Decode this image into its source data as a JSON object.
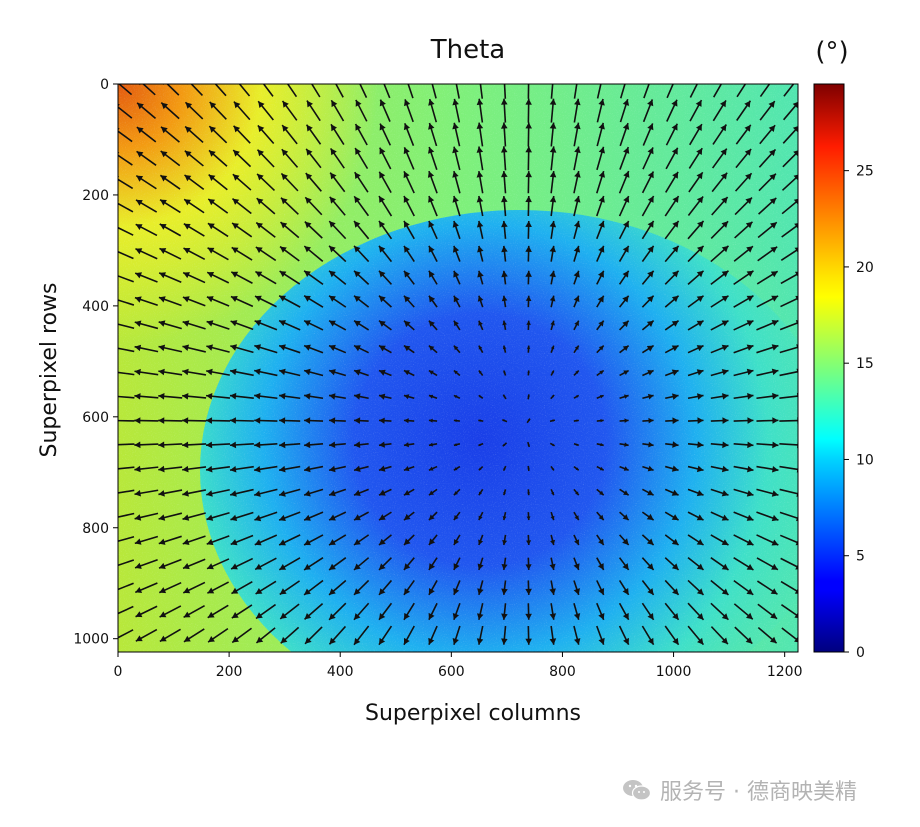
{
  "chart_data": {
    "type": "heatmap",
    "title": "Theta",
    "xlabel": "Superpixel columns",
    "ylabel": "Superpixel rows",
    "xlim": [
      0,
      1224
    ],
    "ylim": [
      1024,
      0
    ],
    "xticks": [
      0,
      200,
      400,
      600,
      800,
      1000,
      1200
    ],
    "yticks": [
      0,
      200,
      400,
      600,
      800,
      1000
    ],
    "colorbar": {
      "label": "(°)",
      "range": [
        0,
        29.5
      ],
      "ticks": [
        0,
        5,
        10,
        15,
        20,
        25
      ],
      "colormap": "jet"
    },
    "description_of_field": {
      "low_region_center": [
        720,
        620
      ],
      "low_value": 6.5,
      "high_corner": [
        0,
        0
      ],
      "high_value": 26,
      "bottom_left_value": 19,
      "top_right_value": 14
    },
    "vector_overlay": {
      "kind": "quiver",
      "pattern": "arrows radiate outward from the low-theta region",
      "source_point": [
        730,
        620
      ],
      "grid_spacing": 43,
      "color": "#111111"
    }
  },
  "watermark": {
    "text": "服务号 · 德商映美精",
    "icon": "wechat-icon",
    "color": "#b3b3b3"
  }
}
